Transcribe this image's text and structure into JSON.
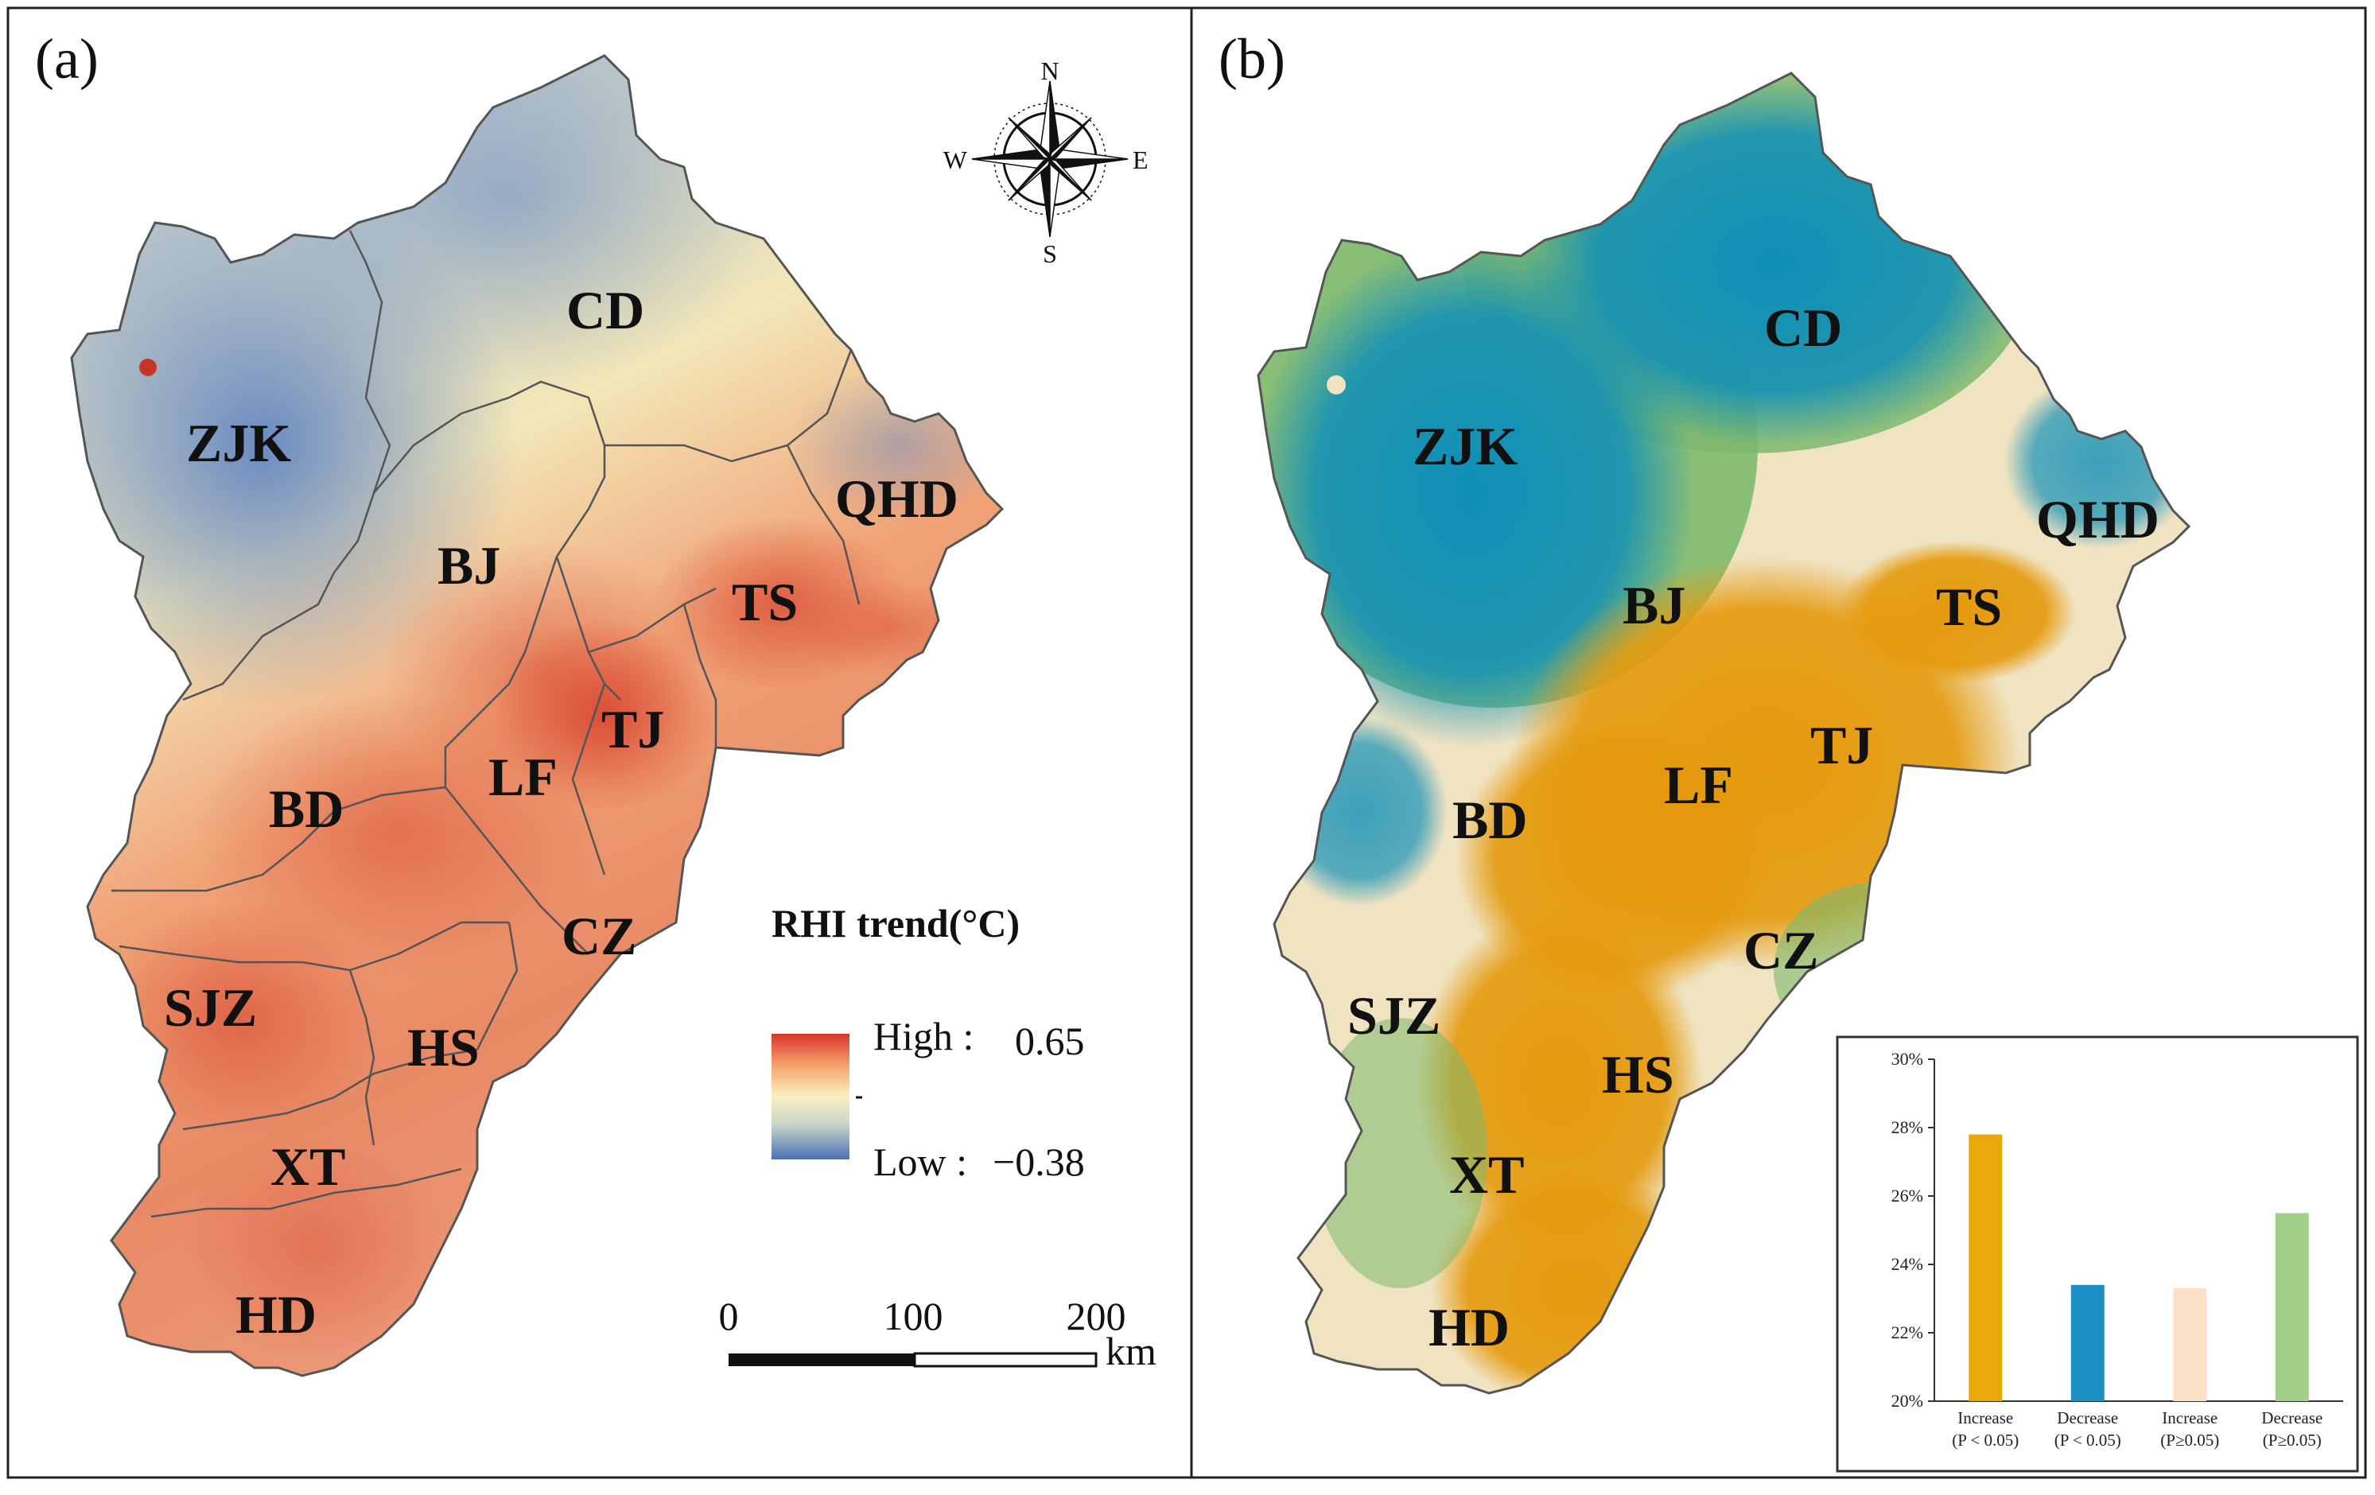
{
  "colors": {
    "ramp_high": "#d7342a",
    "ramp_mid_hi": "#f5a36e",
    "ramp_mid": "#fbf0be",
    "ramp_mid_lo": "#c9d4c8",
    "ramp_low": "#4a72b8",
    "sig_increase": "#e59a0d",
    "sig_decrease": "#0f8fb7",
    "nonsig_increase": "#f0e3c2",
    "nonsig_decrease": "#7db96e",
    "boundary": "#555555"
  },
  "panel_a": {
    "label": "(a)",
    "regions": [
      "CD",
      "ZJK",
      "QHD",
      "BJ",
      "TS",
      "TJ",
      "LF",
      "BD",
      "CZ",
      "SJZ",
      "HS",
      "XT",
      "HD"
    ],
    "compass": {
      "north": "N",
      "south": "S",
      "east": "E",
      "west": "W"
    },
    "legend": {
      "title": "RHI trend(°C)",
      "high_label": "High :",
      "high_value": "0.65",
      "low_label": "Low :",
      "low_value": "−0.38"
    },
    "scalebar": {
      "ticks": [
        "0",
        "100",
        "200"
      ],
      "unit": "km"
    }
  },
  "panel_b": {
    "label": "(b)",
    "regions": [
      "CD",
      "ZJK",
      "QHD",
      "BJ",
      "TS",
      "TJ",
      "LF",
      "BD",
      "CZ",
      "SJZ",
      "HS",
      "XT",
      "HD"
    ]
  },
  "chart_data": {
    "type": "bar",
    "title": "",
    "xlabel": "",
    "ylabel": "",
    "ylim": [
      20,
      30
    ],
    "yticks": [
      "20%",
      "22%",
      "24%",
      "26%",
      "28%",
      "30%"
    ],
    "categories": [
      {
        "line1": "Increase",
        "line2": "(P < 0.05)"
      },
      {
        "line1": "Decrease",
        "line2": "(P < 0.05)"
      },
      {
        "line1": "Increase",
        "line2": "(P≥0.05)"
      },
      {
        "line1": "Decrease",
        "line2": "(P≥0.05)"
      }
    ],
    "values": [
      27.8,
      23.4,
      23.3,
      25.5
    ],
    "bar_colors": [
      "#e8a90a",
      "#1b8fc4",
      "#fde0c8",
      "#a2d08a"
    ]
  }
}
